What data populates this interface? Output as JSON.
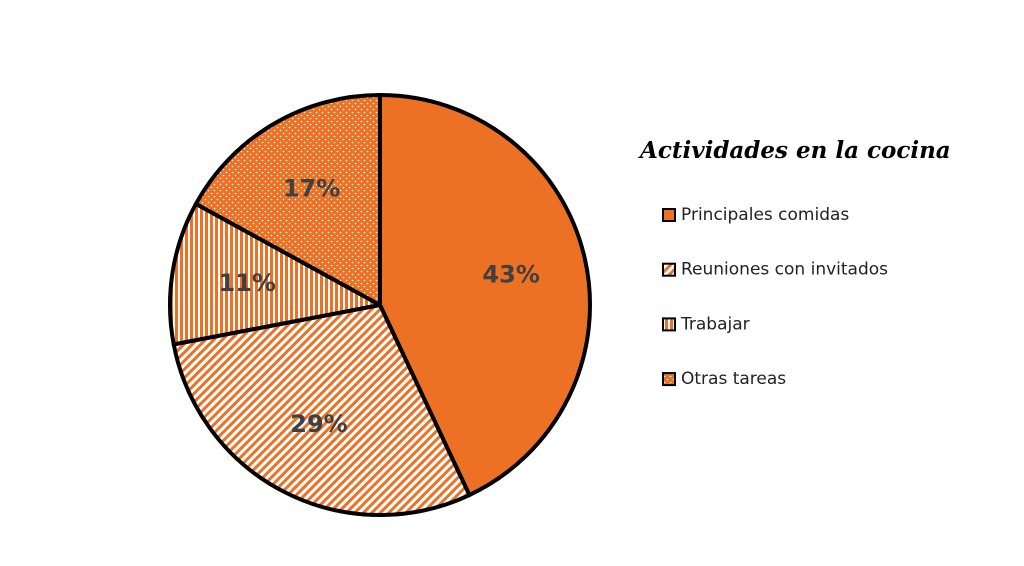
{
  "chart_data": {
    "type": "pie",
    "title": "Actividades en la cocina",
    "categories": [
      "Principales comidas",
      "Reuniones con invitados",
      "Trabajar",
      "Otras tareas"
    ],
    "values": [
      43,
      29,
      11,
      17
    ],
    "value_labels": [
      "43%",
      "29%",
      "11%",
      "17%"
    ],
    "colors": [
      "#ED7125",
      "#ED7125",
      "#ED7125",
      "#ED7125"
    ],
    "patterns": [
      "solid",
      "diagonal",
      "vertical",
      "dots"
    ]
  }
}
